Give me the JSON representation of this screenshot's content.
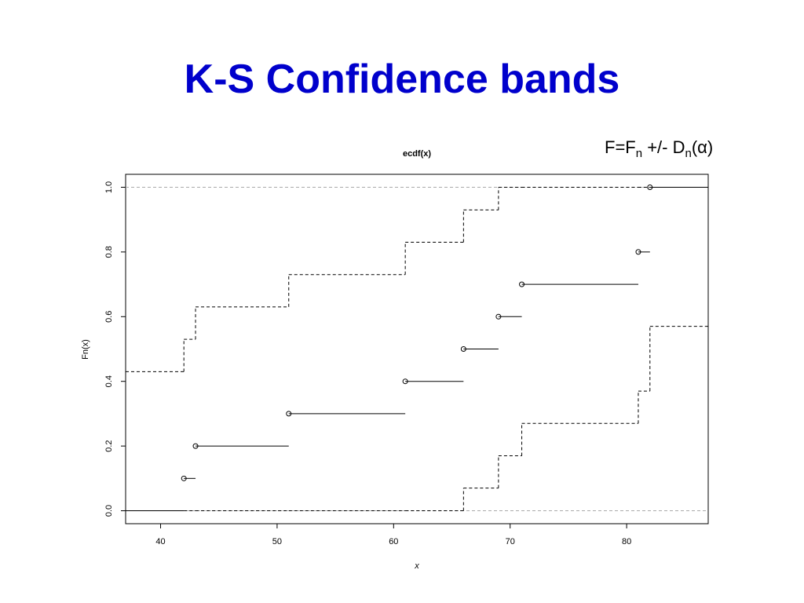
{
  "slide_title": "K-S Confidence bands",
  "annotation": [
    "F=F",
    "n",
    " +/- D",
    "n",
    "(α)"
  ],
  "chart_data": {
    "type": "step",
    "title": "ecdf(x)",
    "x_label": "x",
    "y_label": "Fn(x)",
    "x": [
      42,
      43,
      51,
      61,
      66,
      69,
      71,
      81,
      82
    ],
    "ecdf": {
      "left_value": 0,
      "values": [
        0.1,
        0.2,
        0.3,
        0.4,
        0.5,
        0.6,
        0.7,
        0.8,
        1.0
      ]
    },
    "upper_band": {
      "left_value": 0.43,
      "values": [
        0.53,
        0.63,
        0.73,
        0.83,
        0.93,
        1.0,
        1.0,
        1.0,
        1.0
      ]
    },
    "lower_band": {
      "left_value": 0,
      "values": [
        0,
        0,
        0,
        0,
        0.07,
        0.17,
        0.27,
        0.37,
        0.57
      ]
    },
    "hlines": [
      0,
      1
    ],
    "xlim": [
      37,
      87
    ],
    "ylim": [
      -0.04,
      1.04
    ],
    "xticks": [
      40,
      50,
      60,
      70,
      80
    ],
    "yticks": [
      {
        "value": 0,
        "label": "0.0"
      },
      {
        "value": 0.2,
        "label": "0.2"
      },
      {
        "value": 0.4,
        "label": "0.4"
      },
      {
        "value": 0.6,
        "label": "0.6"
      },
      {
        "value": 0.8,
        "label": "0.8"
      },
      {
        "value": 1.0,
        "label": "1.0"
      }
    ]
  }
}
